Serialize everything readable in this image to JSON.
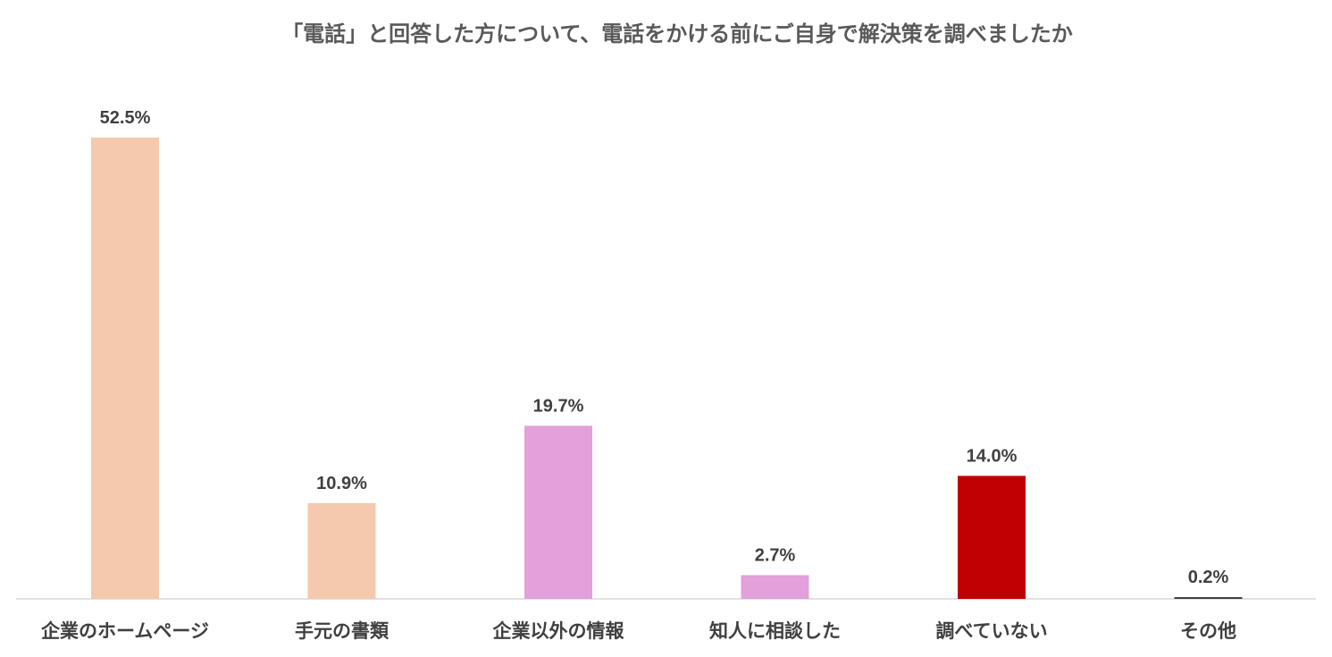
{
  "chart_data": {
    "type": "bar",
    "title": "「電話」と回答した方について、電話をかける前にご自身で解決策を調べましたか",
    "categories": [
      "企業のホームページ",
      "手元の書類",
      "企業以外の情報",
      "知人に相談した",
      "調べていない",
      "その他"
    ],
    "values": [
      52.5,
      10.9,
      19.7,
      2.7,
      14.0,
      0.2
    ],
    "value_labels": [
      "52.5%",
      "10.9%",
      "19.7%",
      "2.7%",
      "14.0%",
      "0.2%"
    ],
    "colors": [
      "#F5C9AE",
      "#F5C9AE",
      "#E3A0DA",
      "#E3A0DA",
      "#C00000",
      "#404040"
    ],
    "ylim": [
      0,
      60
    ],
    "grid": false,
    "xlabel": "",
    "ylabel": ""
  }
}
